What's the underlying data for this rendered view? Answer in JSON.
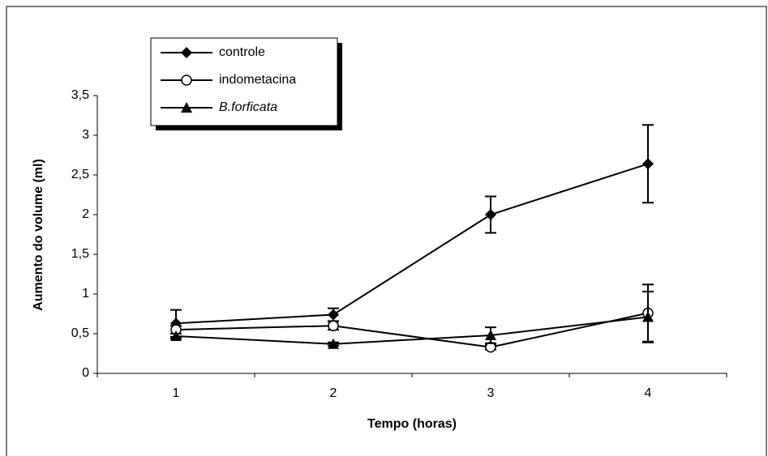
{
  "chart_data": {
    "type": "line",
    "xlabel": "Tempo (horas)",
    "ylabel": "Aumento do volume (ml)",
    "categories": [
      "1",
      "2",
      "3",
      "4"
    ],
    "series": [
      {
        "name": "controle",
        "color": "#000000",
        "marker": "diamond",
        "values": [
          0.63,
          0.74,
          2.0,
          2.64
        ],
        "errors": [
          0.17,
          0.08,
          0.23,
          0.49
        ]
      },
      {
        "name": "indometacina",
        "color": "#000000",
        "marker": "circle-open",
        "values": [
          0.55,
          0.6,
          0.33,
          0.76
        ],
        "errors": [
          0.05,
          0.05,
          0.03,
          0.36
        ]
      },
      {
        "name": "B.forficata",
        "color": "#000000",
        "marker": "triangle",
        "italic": true,
        "values": [
          0.47,
          0.37,
          0.48,
          0.71
        ],
        "errors": [
          0.03,
          0.02,
          0.1,
          0.32
        ]
      }
    ],
    "ylim": [
      0,
      3.5
    ],
    "yticks": [
      0,
      {
        "value": 0.5,
        "label": "0,5"
      },
      1,
      {
        "value": 1.5,
        "label": "1,5"
      },
      2,
      {
        "value": 2.5,
        "label": "2,5"
      },
      3,
      {
        "value": 3.5,
        "label": "3,5"
      }
    ],
    "legend": "top-left"
  }
}
